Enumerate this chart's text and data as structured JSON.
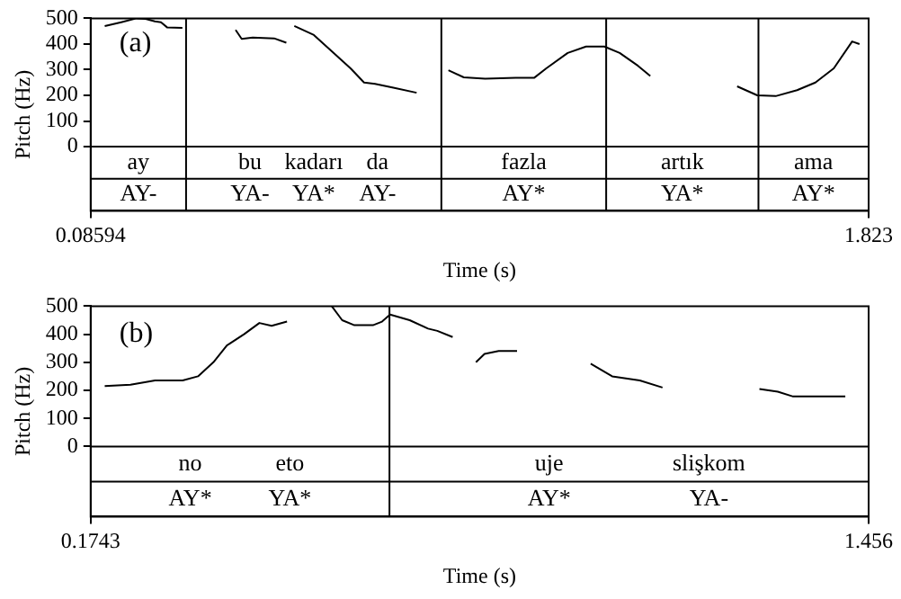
{
  "chart_data": [
    {
      "type": "line",
      "xlabel": "Time (s)",
      "ylabel": "Pitch (Hz)",
      "xlim": [
        0.08594,
        1.823
      ],
      "xticks": [
        0.08594,
        1.823
      ],
      "ylim": [
        -250,
        500
      ],
      "yticks": [
        0,
        100,
        200,
        300,
        400,
        500
      ],
      "grid": false,
      "marker": "none",
      "line_style": "solid",
      "series": [
        {
          "color": "#000000",
          "x": [
            0.1174,
            0.1542,
            0.1884,
            0.2088,
            0.2293,
            0.243,
            0.2566,
            0.2908
          ],
          "values": [
            470,
            485,
            500,
            498,
            488,
            485,
            465,
            463
          ]
        },
        {
          "color": "#000000",
          "x": [
            0.4096,
            0.4232,
            0.4478,
            0.4956,
            0.5229
          ],
          "values": [
            455,
            420,
            425,
            422,
            405
          ]
        },
        {
          "color": "#000000",
          "x": [
            0.5407,
            0.5844,
            0.6254,
            0.6663,
            0.6964,
            0.7209,
            0.7619,
            0.8138
          ],
          "values": [
            470,
            435,
            370,
            305,
            250,
            245,
            230,
            210
          ]
        },
        {
          "color": "#000000",
          "x": [
            0.8848,
            0.919,
            0.9668,
            1.035,
            1.076,
            1.1033,
            1.1511,
            1.1921,
            1.233,
            1.2672,
            1.3081,
            1.3355
          ],
          "values": [
            298,
            270,
            265,
            268,
            268,
            305,
            365,
            390,
            390,
            365,
            315,
            275
          ]
        },
        {
          "color": "#000000",
          "x": [
            1.5294,
            1.5745,
            1.6155,
            1.6633,
            1.7042,
            1.7452,
            1.7862,
            1.8026
          ],
          "values": [
            235,
            200,
            197,
            220,
            250,
            305,
            410,
            400
          ]
        }
      ],
      "ref_lines": [
        {
          "axis": "y",
          "value": 0
        },
        {
          "axis": "y",
          "value": -125
        },
        {
          "axis": "x",
          "value": 0.299
        },
        {
          "axis": "x",
          "value": 0.869
        },
        {
          "axis": "x",
          "value": 1.237
        },
        {
          "axis": "x",
          "value": 1.577
        }
      ],
      "annotations": [
        "(a)",
        "ay",
        "bu kadarı da",
        "fazla",
        "artık",
        "ama",
        "AY-",
        "YA- YA* AY-",
        "AY*",
        "YA*",
        "AY*"
      ]
    },
    {
      "type": "line",
      "xlabel": "Time (s)",
      "ylabel": "Pitch (Hz)",
      "xlim": [
        0.1743,
        1.456
      ],
      "xticks": [
        0.1743,
        1.456
      ],
      "ylim": [
        -250,
        500
      ],
      "yticks": [
        0,
        100,
        200,
        300,
        400,
        500
      ],
      "grid": false,
      "marker": "none",
      "line_style": "solid",
      "series": [
        {
          "color": "#000000",
          "x": [
            0.1975,
            0.24,
            0.2804,
            0.3259,
            0.3512,
            0.3765,
            0.3987,
            0.427,
            0.4523,
            0.4725,
            0.4978
          ],
          "values": [
            215,
            220,
            235,
            235,
            250,
            300,
            360,
            400,
            440,
            430,
            445
          ]
        },
        {
          "color": "#000000",
          "x": [
            0.5715,
            0.5887,
            0.6089,
            0.6393,
            0.6544,
            0.6676,
            0.6999,
            0.7302,
            0.7454,
            0.7707
          ],
          "values": [
            500,
            450,
            432,
            432,
            445,
            470,
            450,
            420,
            412,
            390
          ]
        },
        {
          "color": "#000000",
          "x": [
            0.8091,
            0.8232,
            0.8465,
            0.8768
          ],
          "values": [
            300,
            330,
            340,
            340
          ]
        },
        {
          "color": "#000000",
          "x": [
            0.9981,
            1.0335,
            1.079,
            1.1164
          ],
          "values": [
            295,
            250,
            235,
            210
          ]
        },
        {
          "color": "#000000",
          "x": [
            1.2761,
            1.3064,
            1.3316,
            1.367,
            1.4176
          ],
          "values": [
            205,
            195,
            178,
            178,
            178
          ]
        }
      ],
      "ref_lines": [
        {
          "axis": "y",
          "value": 0
        },
        {
          "axis": "y",
          "value": -125
        },
        {
          "axis": "x",
          "value": 0.6666
        }
      ],
      "annotations": [
        "(b)",
        "no eto",
        "uje slişkom",
        "AY* YA*",
        "AY* YA-"
      ]
    }
  ]
}
